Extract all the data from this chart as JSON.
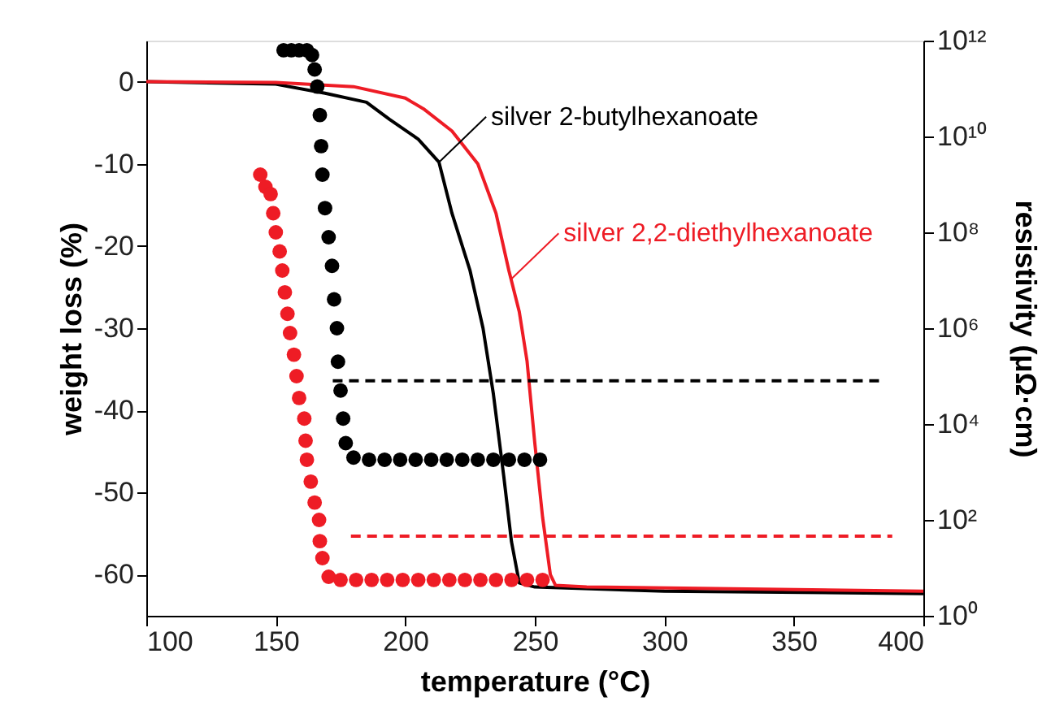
{
  "chart_data": {
    "type": "line",
    "xlabel": "temperature (°C)",
    "ylabel": "weight loss (%)",
    "y2label": "resistivity (μΩ·cm)",
    "xlim": [
      100,
      400
    ],
    "xticks": [
      100,
      150,
      200,
      250,
      300,
      350,
      400
    ],
    "ylim": [
      -65,
      5
    ],
    "yticks": [
      0,
      -10,
      -20,
      -30,
      -40,
      -50,
      -60
    ],
    "y2lim": [
      1,
      1000000000000.0
    ],
    "y2ticks": [
      {
        "value": 1,
        "label": "10⁰"
      },
      {
        "value": 100,
        "label": "10²"
      },
      {
        "value": 10000,
        "label": "10⁴"
      },
      {
        "value": 1000000,
        "label": "10⁶"
      },
      {
        "value": 100000000,
        "label": "10⁸"
      },
      {
        "value": 10000000000,
        "label": "10¹⁰"
      },
      {
        "value": 1000000000000,
        "label": "10¹²"
      }
    ],
    "log": "y2",
    "grid": false,
    "series": [
      {
        "color": "#000000",
        "x": [
          100,
          150,
          169,
          185,
          194,
          205,
          213,
          218,
          225,
          230,
          234,
          238,
          241,
          244,
          250,
          300,
          400
        ],
        "values": [
          0,
          -0.3,
          -1.4,
          -2.5,
          -4.6,
          -7,
          -9.8,
          -16,
          -23,
          -30,
          -38,
          -48,
          -56,
          -61,
          -61.5,
          -62,
          -62.3
        ]
      },
      {
        "color": "#ee1c25",
        "x": [
          100,
          150,
          180,
          200,
          207,
          218,
          228,
          235,
          240,
          244,
          247,
          250,
          253,
          256,
          258,
          270,
          400
        ],
        "values": [
          0,
          -0.1,
          -0.6,
          -2,
          -3.3,
          -6,
          -10,
          -16,
          -23,
          -28,
          -34,
          -44,
          -53,
          -60,
          -61.3,
          -61.5,
          -62
        ]
      },
      {
        "type": "scatter",
        "axis": "y2",
        "marker": "circle",
        "color": "#000000",
        "x": [
          153,
          156,
          159,
          162,
          164,
          165,
          166,
          167,
          167.5,
          168,
          169,
          170.4,
          171.7,
          172.5,
          173.6,
          174,
          175,
          176,
          177,
          180,
          186,
          192,
          198,
          204,
          210,
          216,
          222,
          228,
          234,
          240,
          246,
          252
        ],
        "values": [
          630000000000.0,
          630000000000.0,
          630000000000.0,
          630000000000.0,
          500000000000.0,
          250000000000.0,
          110000000000.0,
          28000000000.0,
          6300000000.0,
          1600000000.0,
          320000000.0,
          79000000.0,
          20000000.0,
          4000000.0,
          1000000.0,
          200000.0,
          50000.0,
          13000.0,
          4000.0,
          2000.0,
          1800.0,
          1800.0,
          1800.0,
          1800.0,
          1800.0,
          1800.0,
          1800.0,
          1800.0,
          1800.0,
          1800.0,
          1800.0,
          1800.0
        ]
      },
      {
        "type": "scatter",
        "axis": "y2",
        "marker": "circle",
        "color": "#ee1c25",
        "x": [
          144,
          146,
          148,
          149,
          150,
          151.5,
          152.5,
          153.5,
          154.5,
          155.5,
          157,
          158,
          159,
          161,
          161.5,
          162,
          163.5,
          165,
          166.7,
          167,
          168,
          170.4,
          175,
          181,
          187,
          193,
          199,
          205,
          211,
          217,
          223,
          229,
          235,
          241,
          247,
          253
        ],
        "values": [
          1600000000.0,
          890000000.0,
          630000000.0,
          250000000.0,
          100000000.0,
          40000000.0,
          16000000.0,
          5600000.0,
          2000000.0,
          790000.0,
          280000.0,
          100000.0,
          35000.0,
          13000.0,
          4500.0,
          1800.0,
          630,
          230,
          100,
          36,
          16,
          6.5,
          5.6,
          5.6,
          5.6,
          5.6,
          5.6,
          5.6,
          5.6,
          5.6,
          5.6,
          5.6,
          5.6,
          5.6,
          5.6,
          5.6
        ]
      },
      {
        "type": "line",
        "axis": "y2",
        "line_style": "dashed",
        "color": "#000000",
        "x": [
          172,
          383
        ],
        "values": [
          80000.0,
          80000.0
        ]
      },
      {
        "type": "line",
        "axis": "y2",
        "line_style": "dashed",
        "color": "#ee1c25",
        "x": [
          179,
          388
        ],
        "values": [
          46,
          46
        ]
      }
    ],
    "annotations": [
      {
        "text": "silver 2-butylhexanoate",
        "x": 213,
        "y": -9.8
      },
      {
        "text": "silver 2,2-diethylhexanoate",
        "x": 241,
        "y": -24
      }
    ]
  }
}
